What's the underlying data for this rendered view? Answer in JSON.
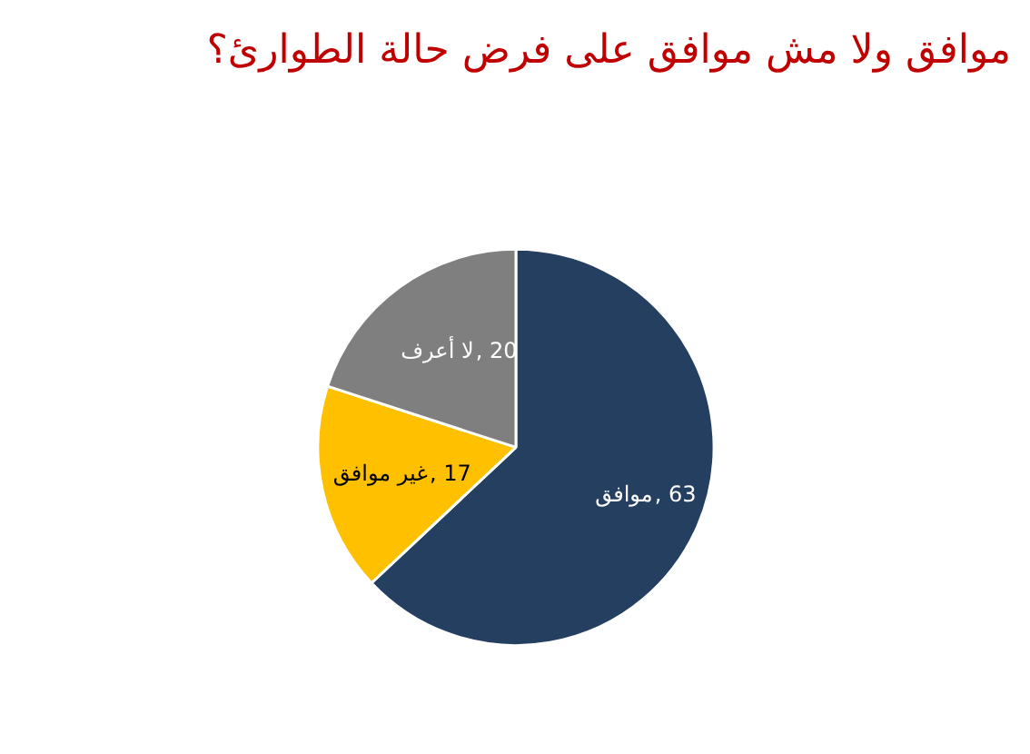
{
  "chart_data": {
    "type": "pie",
    "title": "موافق ولا مش موافق على فرض حالة الطوارئ؟",
    "categories": [
      "موافق",
      "غير موافق",
      "لا أعرف"
    ],
    "values": [
      63,
      17,
      20
    ],
    "colors": [
      "#243f60",
      "#ffc000",
      "#7f7f7f"
    ],
    "value_labels": [
      ", 63",
      ", 17",
      ", 20"
    ]
  }
}
